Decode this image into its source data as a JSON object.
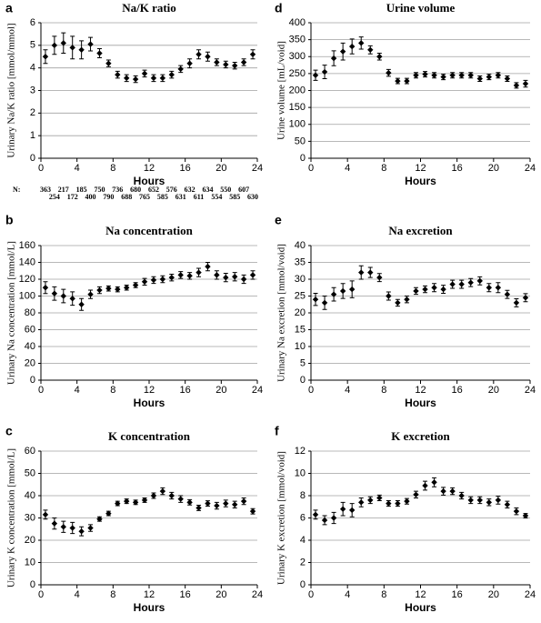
{
  "chart_data": [
    {
      "type": "scatter",
      "panel_label": "a",
      "title": "Na/K ratio",
      "ylabel": "Urinary Na/K ratio [mmol/mmol]",
      "xlabel": "Hours",
      "x": [
        0.5,
        1.5,
        2.5,
        3.5,
        4.5,
        5.5,
        6.5,
        7.5,
        8.5,
        9.5,
        10.5,
        11.5,
        12.5,
        13.5,
        14.5,
        15.5,
        16.5,
        17.5,
        18.5,
        19.5,
        20.5,
        21.5,
        22.5,
        23.5
      ],
      "series": [
        {
          "color": "#000000",
          "values": [
            4.5,
            5.0,
            5.1,
            4.9,
            4.8,
            5.05,
            4.65,
            4.2,
            3.7,
            3.55,
            3.5,
            3.75,
            3.55,
            3.55,
            3.7,
            3.95,
            4.2,
            4.6,
            4.5,
            4.25,
            4.15,
            4.1,
            4.25,
            4.6
          ],
          "errors": [
            0.3,
            0.4,
            0.45,
            0.5,
            0.4,
            0.3,
            0.2,
            0.15,
            0.15,
            0.15,
            0.15,
            0.15,
            0.15,
            0.15,
            0.15,
            0.15,
            0.2,
            0.2,
            0.2,
            0.15,
            0.15,
            0.15,
            0.15,
            0.2
          ]
        }
      ],
      "xlim": [
        0,
        24
      ],
      "ylim": [
        0,
        6
      ],
      "xticks": [
        0,
        4,
        8,
        12,
        16,
        20,
        24
      ],
      "yticks": [
        0,
        1,
        2,
        3,
        4,
        5,
        6
      ],
      "grid": true,
      "n_label": "N:",
      "n": [
        363,
        254,
        217,
        172,
        185,
        400,
        750,
        790,
        736,
        688,
        680,
        765,
        652,
        585,
        576,
        631,
        632,
        611,
        634,
        554,
        550,
        585,
        607,
        630
      ]
    },
    {
      "type": "scatter",
      "panel_label": "d",
      "title": "Urine volume",
      "ylabel": "Urine volume [mL/void]",
      "xlabel": "Hours",
      "x": [
        0.5,
        1.5,
        2.5,
        3.5,
        4.5,
        5.5,
        6.5,
        7.5,
        8.5,
        9.5,
        10.5,
        11.5,
        12.5,
        13.5,
        14.5,
        15.5,
        16.5,
        17.5,
        18.5,
        19.5,
        20.5,
        21.5,
        22.5,
        23.5
      ],
      "series": [
        {
          "color": "#000000",
          "values": [
            245,
            255,
            295,
            315,
            330,
            340,
            320,
            300,
            252,
            228,
            228,
            245,
            248,
            245,
            240,
            245,
            245,
            245,
            235,
            240,
            245,
            235,
            215,
            220
          ],
          "errors": [
            15,
            20,
            22,
            25,
            22,
            18,
            12,
            10,
            10,
            8,
            8,
            8,
            8,
            8,
            8,
            8,
            8,
            8,
            8,
            8,
            8,
            8,
            8,
            10
          ]
        }
      ],
      "xlim": [
        0,
        24
      ],
      "ylim": [
        0,
        400
      ],
      "xticks": [
        0,
        4,
        8,
        12,
        16,
        20,
        24
      ],
      "yticks": [
        0,
        50,
        100,
        150,
        200,
        250,
        300,
        350,
        400
      ],
      "grid": true
    },
    {
      "type": "scatter",
      "panel_label": "b",
      "title": "Na concentration",
      "ylabel": "Urinary  Na concentration [mmol/L]",
      "xlabel": "Hours",
      "x": [
        0.5,
        1.5,
        2.5,
        3.5,
        4.5,
        5.5,
        6.5,
        7.5,
        8.5,
        9.5,
        10.5,
        11.5,
        12.5,
        13.5,
        14.5,
        15.5,
        16.5,
        17.5,
        18.5,
        19.5,
        20.5,
        21.5,
        22.5,
        23.5
      ],
      "series": [
        {
          "color": "#000000",
          "values": [
            110,
            103,
            100,
            97,
            90,
            102,
            107,
            109,
            108,
            110,
            113,
            117,
            119,
            120,
            122,
            125,
            124,
            128,
            135,
            125,
            122,
            123,
            120,
            125
          ],
          "errors": [
            7,
            8,
            8,
            8,
            7,
            5,
            4,
            3,
            3,
            3,
            3,
            4,
            4,
            4,
            4,
            4,
            4,
            5,
            5,
            5,
            5,
            5,
            5,
            5
          ]
        }
      ],
      "xlim": [
        0,
        24
      ],
      "ylim": [
        0,
        160
      ],
      "xticks": [
        0,
        4,
        8,
        12,
        16,
        20,
        24
      ],
      "yticks": [
        0,
        20,
        40,
        60,
        80,
        100,
        120,
        140,
        160
      ],
      "grid": true
    },
    {
      "type": "scatter",
      "panel_label": "e",
      "title": "Na excretion",
      "ylabel": "Urinary Na excretion [mmol/void]",
      "xlabel": "Hours",
      "x": [
        0.5,
        1.5,
        2.5,
        3.5,
        4.5,
        5.5,
        6.5,
        7.5,
        8.5,
        9.5,
        10.5,
        11.5,
        12.5,
        13.5,
        14.5,
        15.5,
        16.5,
        17.5,
        18.5,
        19.5,
        20.5,
        21.5,
        22.5,
        23.5
      ],
      "series": [
        {
          "color": "#000000",
          "values": [
            24,
            23,
            25.5,
            26.5,
            27,
            32,
            32,
            30.5,
            25,
            23,
            24,
            26.5,
            27,
            27.5,
            27,
            28.5,
            28.5,
            29,
            29.5,
            27.5,
            27.5,
            25.5,
            23,
            24.5
          ],
          "errors": [
            1.8,
            2,
            2,
            2.2,
            2.5,
            2,
            1.5,
            1.2,
            1.2,
            1,
            1,
            1,
            1,
            1.2,
            1.2,
            1.2,
            1.2,
            1.2,
            1.2,
            1.2,
            1.5,
            1.2,
            1.2,
            1.2
          ]
        }
      ],
      "xlim": [
        0,
        24
      ],
      "ylim": [
        0,
        40
      ],
      "xticks": [
        0,
        4,
        8,
        12,
        16,
        20,
        24
      ],
      "yticks": [
        0,
        5,
        10,
        15,
        20,
        25,
        30,
        35,
        40
      ],
      "grid": true
    },
    {
      "type": "scatter",
      "panel_label": "c",
      "title": "K concentration",
      "ylabel": "Urinary  K concentration [mmol/L]",
      "xlabel": "Hours",
      "x": [
        0.5,
        1.5,
        2.5,
        3.5,
        4.5,
        5.5,
        6.5,
        7.5,
        8.5,
        9.5,
        10.5,
        11.5,
        12.5,
        13.5,
        14.5,
        15.5,
        16.5,
        17.5,
        18.5,
        19.5,
        20.5,
        21.5,
        22.5,
        23.5
      ],
      "series": [
        {
          "color": "#000000",
          "values": [
            31.5,
            27.5,
            26,
            25.5,
            24,
            25.5,
            29.5,
            32,
            36.5,
            37.5,
            37,
            38,
            40,
            42,
            40,
            38.5,
            37,
            34.5,
            36.5,
            35.5,
            36.5,
            36,
            37.5,
            33
          ],
          "errors": [
            2,
            2.5,
            2.5,
            2.5,
            2,
            1.5,
            1,
            1,
            1,
            1,
            1,
            1,
            1.2,
            1.5,
            1.5,
            1.5,
            1.2,
            1.2,
            1.2,
            1.5,
            1.5,
            1.5,
            1.5,
            1.2
          ]
        }
      ],
      "xlim": [
        0,
        24
      ],
      "ylim": [
        0,
        60
      ],
      "xticks": [
        0,
        4,
        8,
        12,
        16,
        20,
        24
      ],
      "yticks": [
        0,
        10,
        20,
        30,
        40,
        50,
        60
      ],
      "grid": true
    },
    {
      "type": "scatter",
      "panel_label": "f",
      "title": "K excretion",
      "ylabel": "Urinary K excretion [mmol/void]",
      "xlabel": "Hours",
      "x": [
        0.5,
        1.5,
        2.5,
        3.5,
        4.5,
        5.5,
        6.5,
        7.5,
        8.5,
        9.5,
        10.5,
        11.5,
        12.5,
        13.5,
        14.5,
        15.5,
        16.5,
        17.5,
        18.5,
        19.5,
        20.5,
        21.5,
        22.5,
        23.5
      ],
      "series": [
        {
          "color": "#000000",
          "values": [
            6.3,
            5.8,
            6.0,
            6.8,
            6.7,
            7.4,
            7.6,
            7.8,
            7.3,
            7.3,
            7.5,
            8.1,
            8.9,
            9.2,
            8.4,
            8.4,
            8.0,
            7.6,
            7.6,
            7.4,
            7.6,
            7.2,
            6.6,
            6.2
          ],
          "errors": [
            0.4,
            0.4,
            0.5,
            0.6,
            0.6,
            0.4,
            0.3,
            0.25,
            0.25,
            0.25,
            0.25,
            0.3,
            0.4,
            0.4,
            0.35,
            0.3,
            0.3,
            0.3,
            0.3,
            0.3,
            0.35,
            0.3,
            0.3,
            0.2
          ]
        }
      ],
      "xlim": [
        0,
        24
      ],
      "ylim": [
        0,
        12
      ],
      "xticks": [
        0,
        4,
        8,
        12,
        16,
        20,
        24
      ],
      "yticks": [
        0,
        2,
        4,
        6,
        8,
        10,
        12
      ],
      "grid": true
    }
  ]
}
